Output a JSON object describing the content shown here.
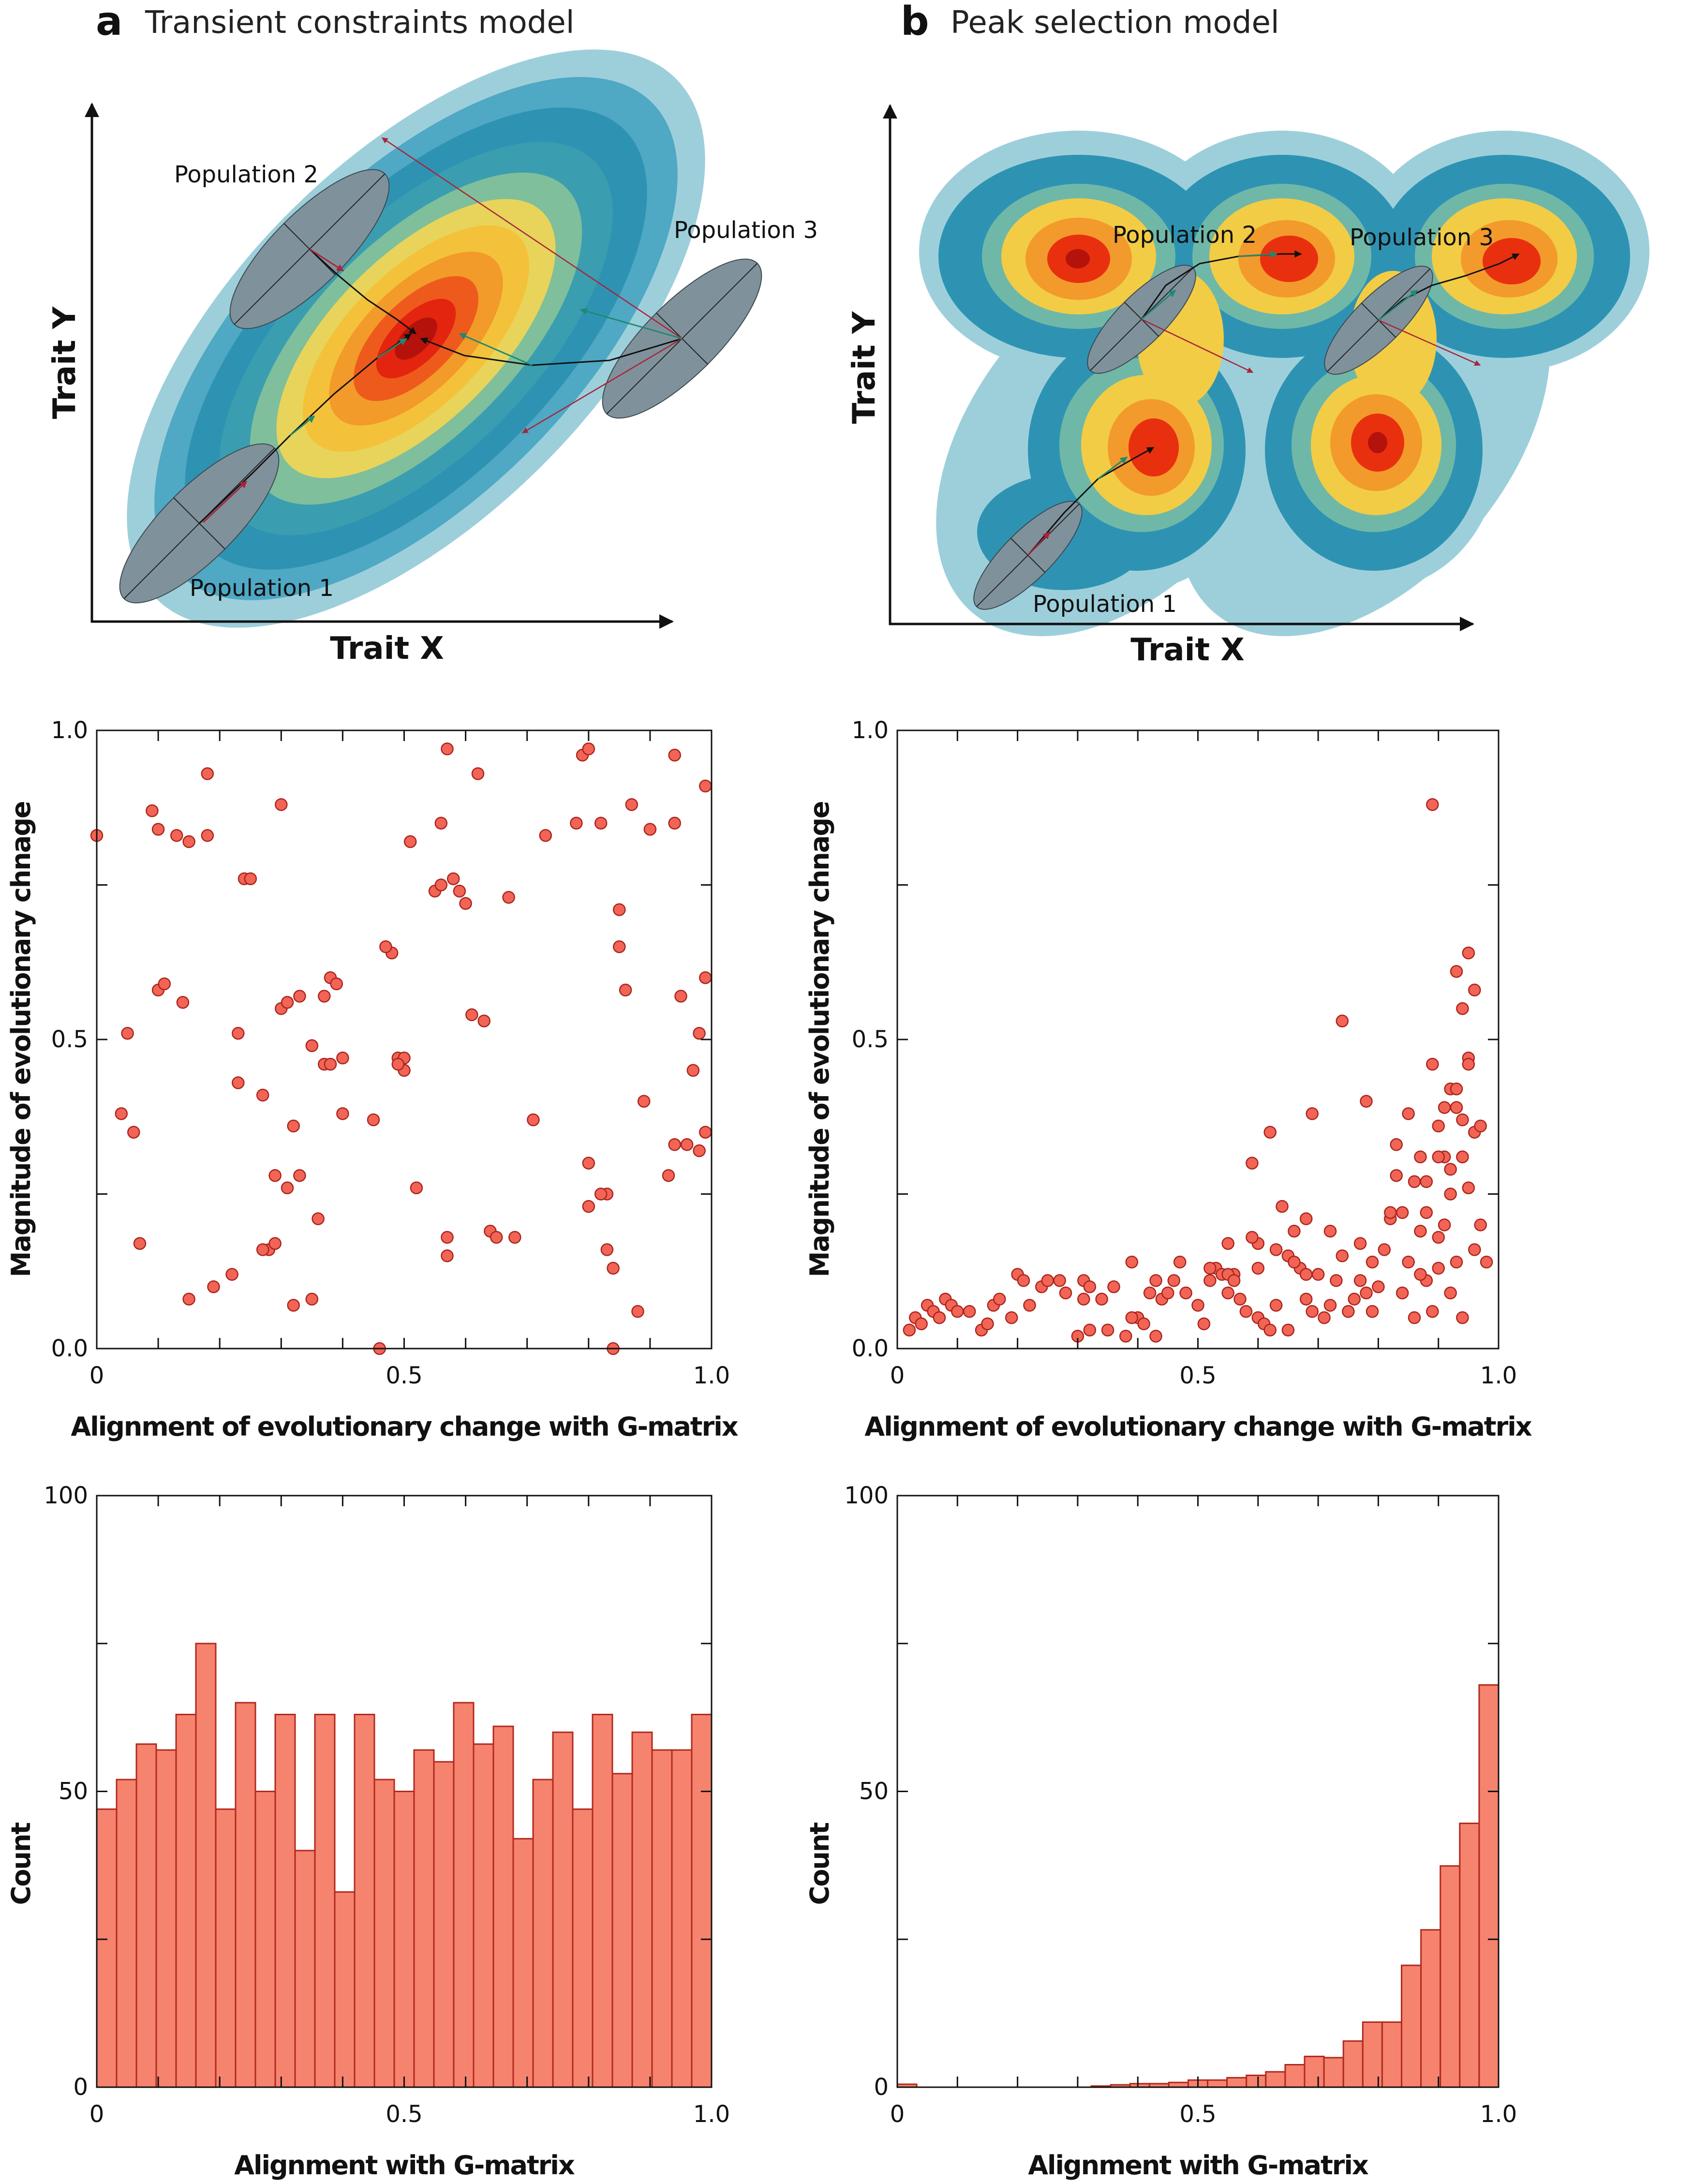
{
  "panels": {
    "a": {
      "letter": "a",
      "title": "Transient constraints model"
    },
    "b": {
      "letter": "b",
      "title": "Peak selection model"
    }
  },
  "schematic": {
    "xlabel": "Trait X",
    "ylabel": "Trait Y",
    "a_populations": [
      "Population 1",
      "Population 2",
      "Population 3"
    ],
    "b_populations": [
      "Population 1",
      "Population 2",
      "Population 3"
    ]
  },
  "colors": {
    "point_fill": "#f26455",
    "point_edge": "#a8241c",
    "bar_fill": "#f5836e",
    "bar_edge": "#b2281e",
    "landscape_outer": "#9dcfdb",
    "landscape_mid": "#2e93b3",
    "landscape_peak": "#e8200f",
    "ellipse_fill": "#7f929c"
  },
  "chart_data": [
    {
      "type": "scatter",
      "panel": "a",
      "xlabel": "Alignment of evolutionary change with G-matrix",
      "ylabel": "Magnitude of evolutionary chnage",
      "xlim": [
        0,
        1.0
      ],
      "ylim": [
        0,
        1.0
      ],
      "xticks": [
        "0",
        "0.5",
        "1.0"
      ],
      "yticks": [
        "0.0",
        "0.5",
        "1.0"
      ],
      "x": [
        0.0,
        0.04,
        0.05,
        0.06,
        0.1,
        0.09,
        0.1,
        0.11,
        0.13,
        0.14,
        0.15,
        0.15,
        0.18,
        0.18,
        0.19,
        0.23,
        0.23,
        0.24,
        0.25,
        0.27,
        0.28,
        0.29,
        0.3,
        0.3,
        0.31,
        0.31,
        0.32,
        0.32,
        0.33,
        0.35,
        0.35,
        0.37,
        0.37,
        0.38,
        0.38,
        0.39,
        0.4,
        0.45,
        0.46,
        0.48,
        0.49,
        0.5,
        0.5,
        0.52,
        0.55,
        0.56,
        0.57,
        0.57,
        0.58,
        0.59,
        0.6,
        0.61,
        0.62,
        0.63,
        0.64,
        0.65,
        0.67,
        0.68,
        0.71,
        0.73,
        0.78,
        0.79,
        0.8,
        0.8,
        0.82,
        0.83,
        0.84,
        0.85,
        0.86,
        0.87,
        0.88,
        0.89,
        0.9,
        0.93,
        0.94,
        0.94,
        0.95,
        0.96,
        0.97,
        0.98,
        0.99,
        0.99,
        0.99,
        0.98,
        0.94,
        0.85,
        0.84,
        0.83,
        0.82,
        0.8,
        0.57,
        0.56,
        0.51,
        0.49,
        0.47,
        0.4,
        0.36,
        0.33,
        0.29,
        0.27,
        0.22,
        0.07
      ],
      "y": [
        0.83,
        0.38,
        0.51,
        0.35,
        0.84,
        0.87,
        0.58,
        0.59,
        0.83,
        0.56,
        0.08,
        0.82,
        0.93,
        0.83,
        0.1,
        0.51,
        0.43,
        0.76,
        0.76,
        0.41,
        0.16,
        0.28,
        0.55,
        0.88,
        0.26,
        0.56,
        0.07,
        0.36,
        0.57,
        0.49,
        0.08,
        0.46,
        0.57,
        0.6,
        0.46,
        0.59,
        0.47,
        0.37,
        0.0,
        0.64,
        0.47,
        0.47,
        0.45,
        0.26,
        0.74,
        0.85,
        0.18,
        0.15,
        0.76,
        0.74,
        0.72,
        0.54,
        0.93,
        0.53,
        0.19,
        0.18,
        0.73,
        0.18,
        0.37,
        0.83,
        0.85,
        0.96,
        0.23,
        0.3,
        0.85,
        0.25,
        0.0,
        0.71,
        0.58,
        0.88,
        0.06,
        0.4,
        0.84,
        0.28,
        0.96,
        0.85,
        0.57,
        0.33,
        0.45,
        0.51,
        0.91,
        0.35,
        0.6,
        0.32,
        0.33,
        0.65,
        0.13,
        0.16,
        0.25,
        0.97,
        0.97,
        0.75,
        0.82,
        0.46,
        0.65,
        0.38,
        0.21,
        0.28,
        0.17,
        0.16,
        0.12,
        0.17
      ]
    },
    {
      "type": "scatter",
      "panel": "b",
      "xlabel": "Alignment of evolutionary change with G-matrix",
      "ylabel": "Magnitude of evolutionary chnage",
      "xlim": [
        0,
        1.0
      ],
      "ylim": [
        0,
        1.0
      ],
      "xticks": [
        "0",
        "0.5",
        "1.0"
      ],
      "yticks": [
        "0.0",
        "0.5",
        "1.0"
      ],
      "x": [
        0.02,
        0.03,
        0.04,
        0.05,
        0.06,
        0.07,
        0.08,
        0.09,
        0.1,
        0.12,
        0.14,
        0.15,
        0.16,
        0.17,
        0.19,
        0.2,
        0.21,
        0.22,
        0.24,
        0.25,
        0.27,
        0.28,
        0.3,
        0.31,
        0.31,
        0.32,
        0.34,
        0.36,
        0.38,
        0.39,
        0.4,
        0.41,
        0.42,
        0.43,
        0.44,
        0.45,
        0.47,
        0.48,
        0.5,
        0.51,
        0.52,
        0.53,
        0.54,
        0.55,
        0.55,
        0.56,
        0.57,
        0.58,
        0.59,
        0.6,
        0.6,
        0.61,
        0.62,
        0.63,
        0.63,
        0.64,
        0.65,
        0.66,
        0.67,
        0.68,
        0.68,
        0.69,
        0.7,
        0.71,
        0.72,
        0.73,
        0.74,
        0.75,
        0.76,
        0.77,
        0.78,
        0.78,
        0.79,
        0.8,
        0.81,
        0.82,
        0.83,
        0.84,
        0.84,
        0.85,
        0.86,
        0.86,
        0.87,
        0.87,
        0.88,
        0.88,
        0.89,
        0.89,
        0.9,
        0.9,
        0.9,
        0.91,
        0.91,
        0.92,
        0.92,
        0.92,
        0.93,
        0.93,
        0.93,
        0.94,
        0.94,
        0.94,
        0.95,
        0.95,
        0.95,
        0.96,
        0.96,
        0.97,
        0.97,
        0.98,
        0.89,
        0.91,
        0.93,
        0.95,
        0.74,
        0.62,
        0.59,
        0.55,
        0.65,
        0.68,
        0.83,
        0.85,
        0.88,
        0.9,
        0.92,
        0.94,
        0.96,
        0.87,
        0.82,
        0.79,
        0.77,
        0.72,
        0.69,
        0.66,
        0.6,
        0.56,
        0.52,
        0.46,
        0.43,
        0.39,
        0.35,
        0.32
      ],
      "y": [
        0.03,
        0.05,
        0.04,
        0.07,
        0.06,
        0.05,
        0.08,
        0.07,
        0.06,
        0.06,
        0.03,
        0.04,
        0.07,
        0.08,
        0.05,
        0.12,
        0.11,
        0.07,
        0.1,
        0.11,
        0.11,
        0.09,
        0.02,
        0.08,
        0.11,
        0.1,
        0.08,
        0.1,
        0.02,
        0.14,
        0.05,
        0.04,
        0.09,
        0.02,
        0.08,
        0.09,
        0.14,
        0.09,
        0.07,
        0.04,
        0.11,
        0.13,
        0.12,
        0.17,
        0.09,
        0.12,
        0.08,
        0.06,
        0.3,
        0.05,
        0.17,
        0.04,
        0.03,
        0.07,
        0.16,
        0.23,
        0.03,
        0.19,
        0.13,
        0.21,
        0.08,
        0.06,
        0.12,
        0.05,
        0.07,
        0.11,
        0.53,
        0.06,
        0.08,
        0.11,
        0.09,
        0.4,
        0.14,
        0.1,
        0.16,
        0.21,
        0.33,
        0.22,
        0.09,
        0.14,
        0.27,
        0.05,
        0.19,
        0.31,
        0.11,
        0.27,
        0.06,
        0.46,
        0.13,
        0.18,
        0.36,
        0.2,
        0.31,
        0.09,
        0.25,
        0.42,
        0.14,
        0.39,
        0.61,
        0.05,
        0.31,
        0.55,
        0.64,
        0.47,
        0.26,
        0.58,
        0.35,
        0.2,
        0.36,
        0.14,
        0.88,
        0.39,
        0.42,
        0.46,
        0.15,
        0.35,
        0.18,
        0.12,
        0.15,
        0.12,
        0.28,
        0.38,
        0.22,
        0.31,
        0.29,
        0.37,
        0.16,
        0.12,
        0.22,
        0.06,
        0.17,
        0.19,
        0.38,
        0.14,
        0.13,
        0.11,
        0.13,
        0.11,
        0.11,
        0.05,
        0.03,
        0.03
      ]
    },
    {
      "type": "bar",
      "panel": "a",
      "xlabel": "Alignment with G-matrix",
      "ylabel": "Count",
      "xlim": [
        0,
        1.0
      ],
      "ylim": [
        0,
        100
      ],
      "xticks": [
        "0",
        "0.5",
        "1.0"
      ],
      "yticks": [
        "0",
        "50",
        "100"
      ],
      "bin_width": 0.0333,
      "values": [
        47,
        52,
        58,
        57,
        63,
        75,
        47,
        65,
        50,
        63,
        40,
        63,
        33,
        63,
        52,
        50,
        57,
        55,
        65,
        58,
        61,
        42,
        52,
        60,
        47,
        63,
        53,
        60,
        57,
        57,
        63
      ]
    },
    {
      "type": "bar",
      "panel": "b",
      "xlabel": "Alignment with G-matrix",
      "ylabel": "Count",
      "xlim": [
        0,
        1.0
      ],
      "ylim": [
        0,
        100
      ],
      "xticks": [
        "0",
        "0.5",
        "1.0"
      ],
      "yticks": [
        "0",
        "50",
        "100"
      ],
      "bin_width": 0.0333,
      "values": [
        0.5,
        0,
        0,
        0,
        0,
        0,
        0,
        0,
        0,
        0,
        0.2,
        0.4,
        0.6,
        0.6,
        0.8,
        1.2,
        1.2,
        1.6,
        2,
        2.6,
        3.8,
        5.2,
        5,
        7.8,
        11,
        11,
        20.6,
        26.6,
        37.4,
        44.6,
        68
      ]
    }
  ]
}
